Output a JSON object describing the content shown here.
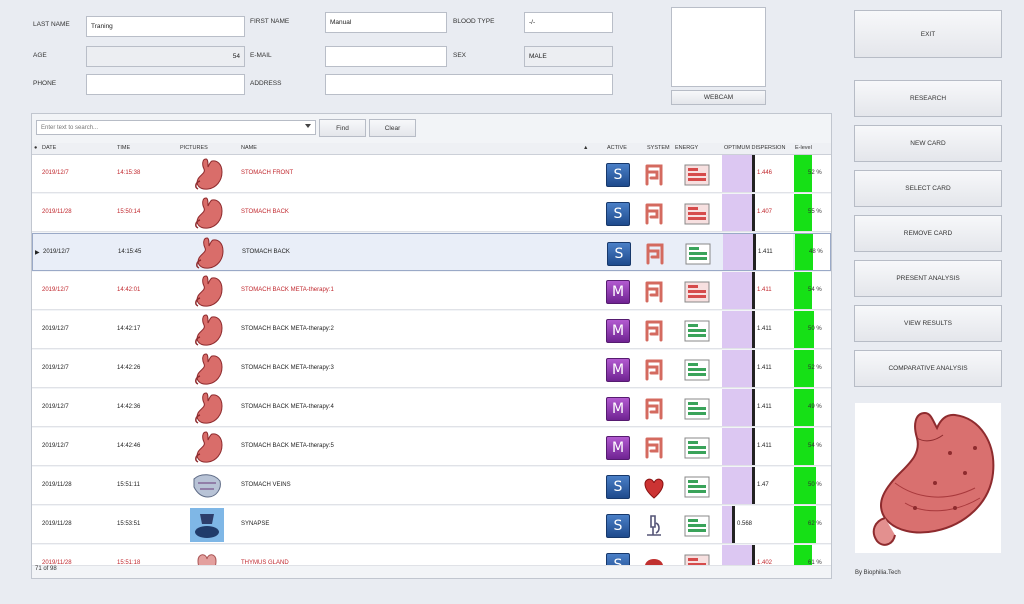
{
  "patient": {
    "last_name_label": "LAST NAME",
    "last_name": "Traning",
    "first_name_label": "FIRST NAME",
    "first_name": "Manual",
    "blood_type_label": "BLOOD TYPE",
    "blood_type": "-/-",
    "age_label": "AGE",
    "age": "54",
    "email_label": "E-MAIL",
    "email": "",
    "sex_label": "SEX",
    "sex": "MALE",
    "phone_label": "PHONE",
    "phone": "",
    "address_label": "ADDRESS",
    "address": ""
  },
  "webcam_label": "WEBCAM",
  "search": {
    "placeholder": "Enter text to search...",
    "find_label": "Find",
    "clear_label": "Clear"
  },
  "columns": {
    "date": "DATE",
    "time": "TIME",
    "pictures": "PICTURES",
    "name": "NAME",
    "active": "ACTIVE",
    "system": "SYSTEM",
    "energy": "ENERGY",
    "optimum_dispersion": "OPTIMUM DISPERSION",
    "e_level": "E-level"
  },
  "rows": [
    {
      "date": "2019/12/7",
      "time": "14:15:38",
      "name": "STOMACH FRONT",
      "active": "S",
      "value": "1.446",
      "elevel": "52 %",
      "red": true,
      "pic": "stomach",
      "sys": "intestine",
      "opt": 0.44,
      "el": 0.5
    },
    {
      "date": "2019/11/28",
      "time": "15:50:14",
      "name": "STOMACH BACK",
      "active": "S",
      "value": "1.407",
      "elevel": "55 %",
      "red": true,
      "pic": "stomach",
      "sys": "intestine",
      "opt": 0.44,
      "el": 0.5
    },
    {
      "date": "2019/12/7",
      "time": "14:15:45",
      "name": "STOMACH BACK",
      "active": "S",
      "value": "1.411",
      "elevel": "48 %",
      "red": false,
      "pic": "stomach",
      "sys": "intestine",
      "opt": 0.44,
      "el": 0.5
    },
    {
      "date": "2019/12/7",
      "time": "14:42:01",
      "name": "STOMACH BACK META-therapy:1",
      "active": "M",
      "value": "1.411",
      "elevel": "54 %",
      "red": true,
      "pic": "stomach",
      "sys": "intestine",
      "opt": 0.44,
      "el": 0.5
    },
    {
      "date": "2019/12/7",
      "time": "14:42:17",
      "name": "STOMACH BACK META-therapy:2",
      "active": "M",
      "value": "1.411",
      "elevel": "50 %",
      "red": false,
      "pic": "stomach",
      "sys": "intestine",
      "opt": 0.44,
      "el": 0.55
    },
    {
      "date": "2019/12/7",
      "time": "14:42:26",
      "name": "STOMACH BACK META-therapy:3",
      "active": "M",
      "value": "1.411",
      "elevel": "52 %",
      "red": false,
      "pic": "stomach",
      "sys": "intestine",
      "opt": 0.44,
      "el": 0.55
    },
    {
      "date": "2019/12/7",
      "time": "14:42:36",
      "name": "STOMACH BACK META-therapy:4",
      "active": "M",
      "value": "1.411",
      "elevel": "49 %",
      "red": false,
      "pic": "stomach",
      "sys": "intestine",
      "opt": 0.44,
      "el": 0.55
    },
    {
      "date": "2019/12/7",
      "time": "14:42:46",
      "name": "STOMACH BACK META-therapy:5",
      "active": "M",
      "value": "1.411",
      "elevel": "54 %",
      "red": false,
      "pic": "stomach",
      "sys": "intestine",
      "opt": 0.44,
      "el": 0.55
    },
    {
      "date": "2019/11/28",
      "time": "15:51:11",
      "name": "STOMACH VEINS",
      "active": "S",
      "value": "1.47",
      "elevel": "50 %",
      "red": false,
      "pic": "veins",
      "sys": "heart",
      "opt": 0.44,
      "el": 0.62
    },
    {
      "date": "2019/11/28",
      "time": "15:53:51",
      "name": "SYNAPSE",
      "active": "S",
      "value": "0.568",
      "elevel": "62 %",
      "red": false,
      "pic": "synapse",
      "sys": "microscope",
      "opt": 0.15,
      "el": 0.6
    },
    {
      "date": "2019/11/28",
      "time": "15:51:18",
      "name": "THYMUS GLAND",
      "active": "S",
      "value": "1.402",
      "elevel": "61 %",
      "red": true,
      "pic": "thymus",
      "sys": "gland",
      "opt": 0.44,
      "el": 0.5
    }
  ],
  "record_count": "71 of 98",
  "sidebar": {
    "exit": "EXIT",
    "research": "RESEARCH",
    "new_card": "NEW CARD",
    "select_card": "SELECT CARD",
    "remove_card": "REMOVE CARD",
    "present_analysis": "PRESENT ANALYSIS",
    "view_results": "VIEW RESULTS",
    "comparative_analysis": "COMPARATIVE ANALYSIS"
  },
  "credit": "By Biophilia.Tech",
  "colors": {
    "red_text": "#c0272d",
    "optimum_fill": "#dcc7f2",
    "elevel_fill": "#16e016",
    "active_s": "#2c5da6",
    "active_m": "#8a35ad"
  }
}
